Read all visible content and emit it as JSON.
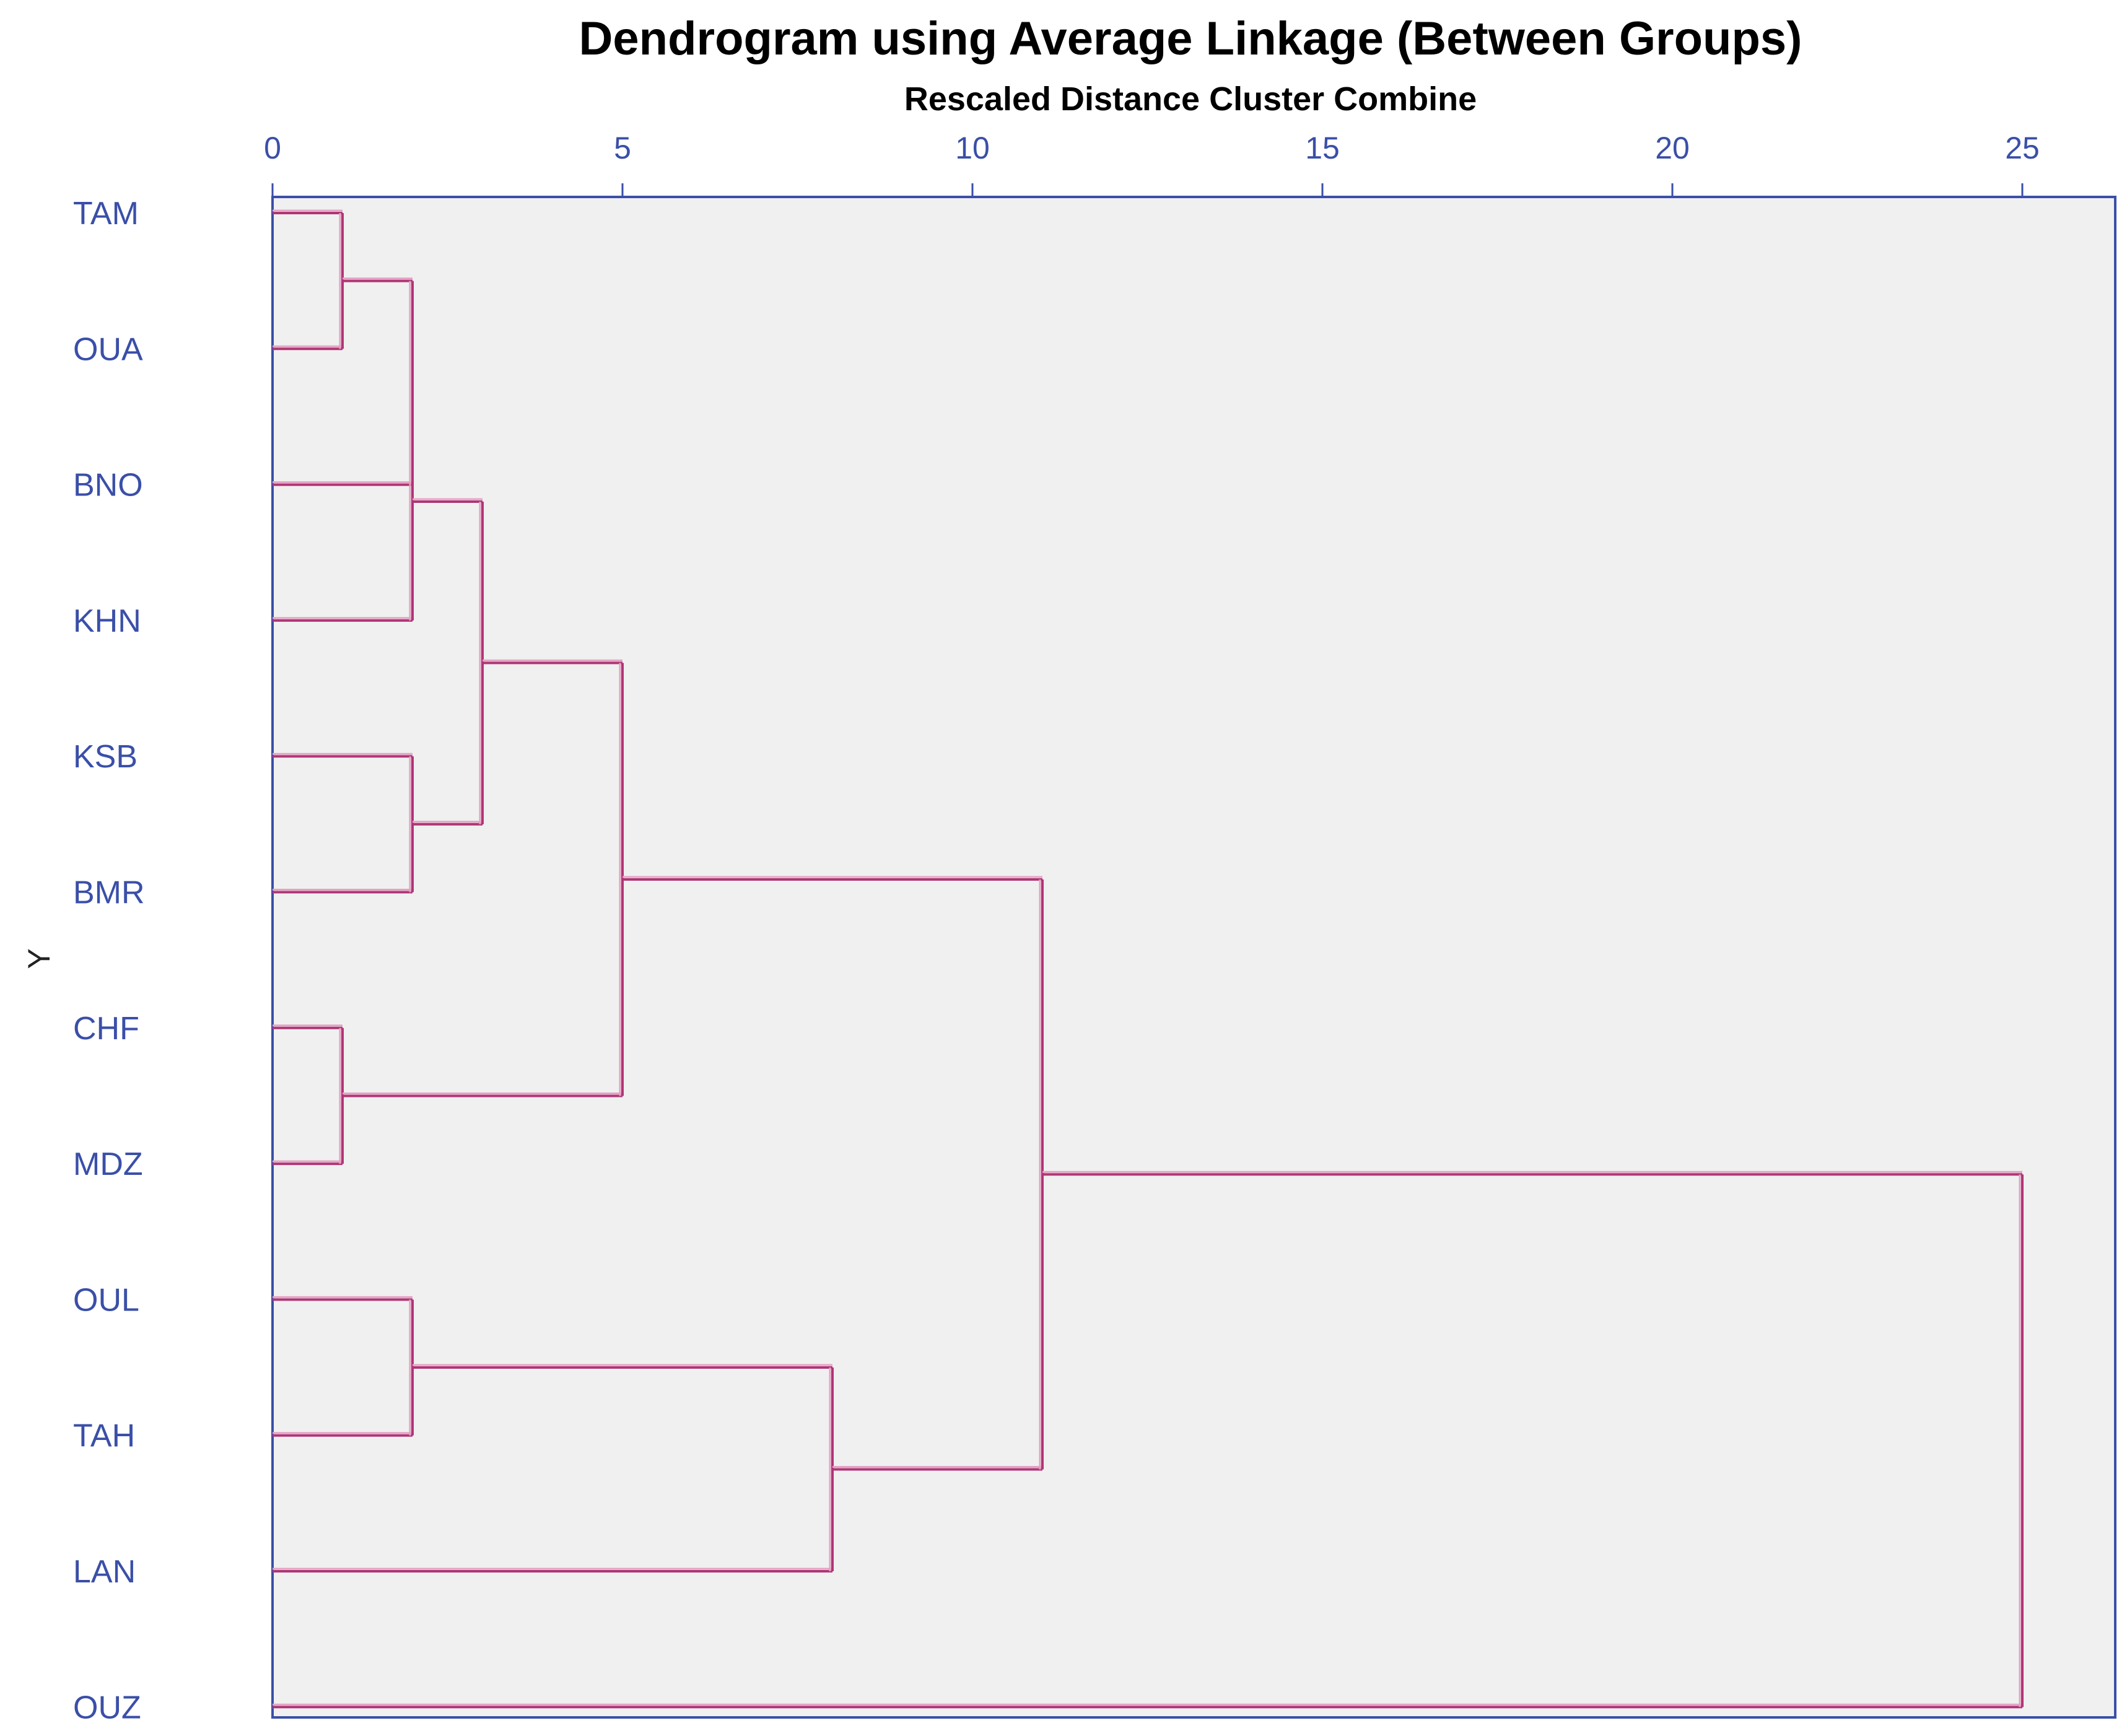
{
  "chart_data": {
    "type": "dendrogram",
    "title": "Dendrogram using Average Linkage (Between Groups)",
    "subtitle": "Rescaled Distance Cluster Combine",
    "ylabel": "Y",
    "xlim": [
      0,
      26.3
    ],
    "x_ticks": [
      0,
      5,
      10,
      15,
      20,
      25
    ],
    "grid": false,
    "leaves": [
      "TAM",
      "OUA",
      "BNO",
      "KHN",
      "KSB",
      "BMR",
      "CHF",
      "MDZ",
      "OUL",
      "TAH",
      "LAN",
      "OUZ"
    ],
    "merges": [
      {
        "id": "c1",
        "left": "TAM",
        "right": "OUA",
        "distance": 1
      },
      {
        "id": "c2",
        "left": "CHF",
        "right": "MDZ",
        "distance": 1
      },
      {
        "id": "c3",
        "left": "c1",
        "right": "BNO",
        "distance": 2
      },
      {
        "id": "c4",
        "left": "c3",
        "right": "KHN",
        "distance": 2
      },
      {
        "id": "c5",
        "left": "KSB",
        "right": "BMR",
        "distance": 2
      },
      {
        "id": "c6",
        "left": "OUL",
        "right": "TAH",
        "distance": 2
      },
      {
        "id": "c7",
        "left": "c4",
        "right": "c5",
        "distance": 3
      },
      {
        "id": "c8",
        "left": "c7",
        "right": "c2",
        "distance": 5
      },
      {
        "id": "c9",
        "left": "c6",
        "right": "LAN",
        "distance": 8
      },
      {
        "id": "c10",
        "left": "c8",
        "right": "c9",
        "distance": 11
      },
      {
        "id": "c11",
        "left": "c10",
        "right": "OUZ",
        "distance": 25
      }
    ]
  },
  "colors": {
    "plot_background": "#f0f0f0",
    "frame": "#3a4fa8",
    "branch": "#b03575",
    "branch_highlight": "#e3a3c3",
    "label": "#3a4fa8"
  }
}
